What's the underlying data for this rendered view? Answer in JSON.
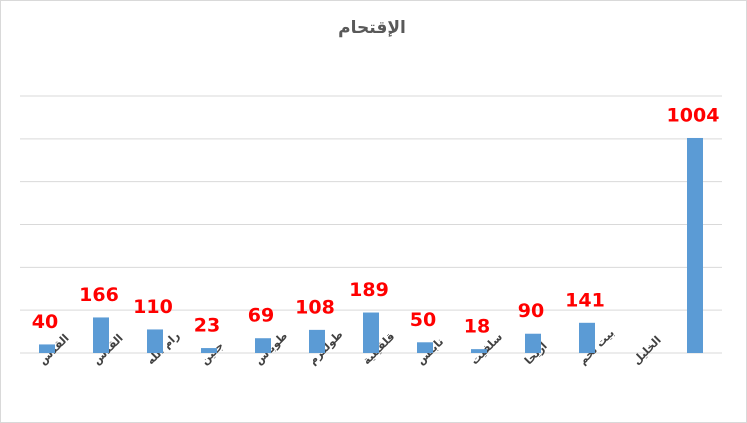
{
  "chart_data": {
    "type": "bar",
    "title": "الإقتحام",
    "categories": [
      "القدس",
      "القدس",
      "رام الله",
      "جنين",
      "طوباس",
      "طولكرم",
      "قلقيلية",
      "نابلس",
      "سلفيت",
      "أريحا",
      "بيت لحم",
      "الخليل",
      null
    ],
    "values": [
      40,
      166,
      110,
      23,
      69,
      108,
      189,
      50,
      18,
      90,
      141,
      null,
      1004
    ],
    "color": "#5b9bd5",
    "label_color": "#ff0000",
    "ylim": [
      0,
      1200
    ],
    "yticks": [
      0,
      200,
      400,
      600,
      800,
      1000,
      1200
    ],
    "grid": true
  }
}
